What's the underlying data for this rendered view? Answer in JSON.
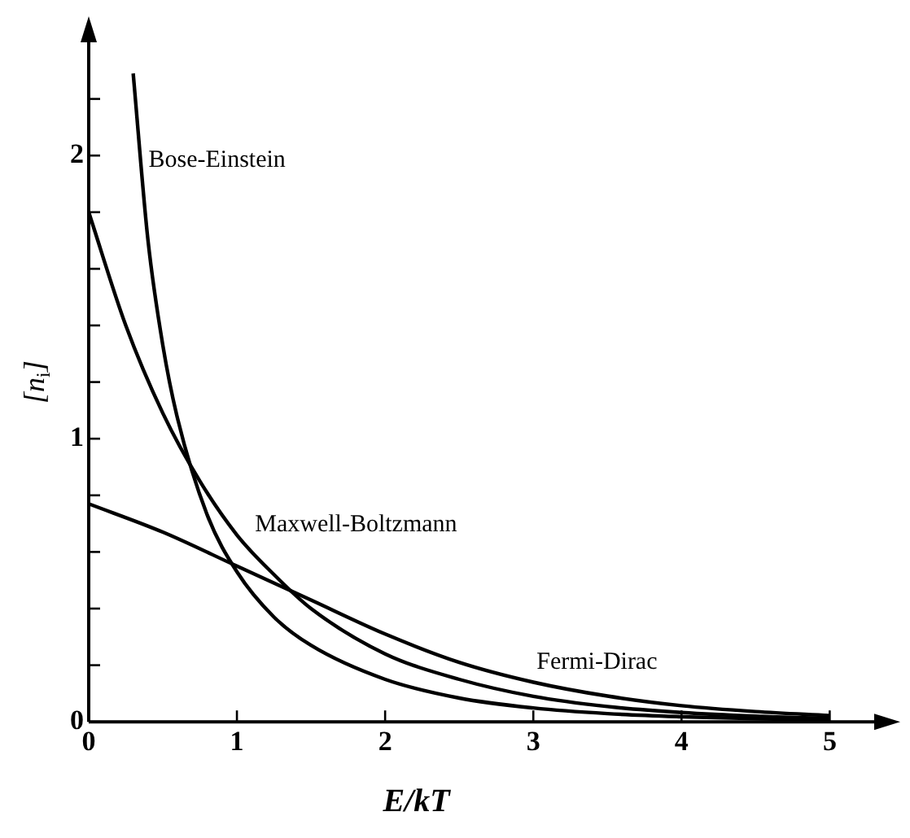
{
  "chart_data": {
    "type": "line",
    "xlabel": "E/kT",
    "ylabel": "[n$_{i}$]",
    "xlim": [
      0,
      5.3
    ],
    "ylim": [
      0,
      2.4
    ],
    "xticks": [
      0,
      1,
      2,
      3,
      4,
      5
    ],
    "yticks": [
      0,
      {
        "value": 0.2,
        "label": null
      },
      {
        "value": 0.4,
        "label": null
      },
      {
        "value": 0.6,
        "label": null
      },
      {
        "value": 0.8,
        "label": null
      },
      1,
      {
        "value": 1.2,
        "label": null
      },
      {
        "value": 1.4,
        "label": null
      },
      {
        "value": 1.6,
        "label": null
      },
      {
        "value": 1.8,
        "label": null
      },
      2,
      {
        "value": 2.2,
        "label": null
      }
    ],
    "grid": false,
    "legend": false,
    "marker": "none",
    "line_style": "solid",
    "series": [
      {
        "name": "Bose-Einstein",
        "color": "#000000",
        "x": [
          0.3,
          0.4,
          0.5,
          0.6,
          0.8,
          1,
          1.25,
          1.5,
          2,
          2.5,
          3,
          3.5,
          4,
          4.5,
          5
        ],
        "values": [
          2.29,
          1.7,
          1.33,
          1.07,
          0.73,
          0.53,
          0.37,
          0.27,
          0.15,
          0.084,
          0.049,
          0.029,
          0.018,
          0.011,
          0.006
        ]
      },
      {
        "name": "Maxwell-Boltzmann",
        "color": "#000000",
        "x": [
          0,
          0.25,
          0.5,
          0.75,
          1,
          1.25,
          1.5,
          2,
          2.5,
          3,
          3.5,
          4,
          4.5,
          5
        ],
        "values": [
          1.8,
          1.4,
          1.09,
          0.85,
          0.66,
          0.52,
          0.4,
          0.24,
          0.15,
          0.09,
          0.054,
          0.033,
          0.02,
          0.012
        ]
      },
      {
        "name": "Fermi-Dirac",
        "color": "#000000",
        "x": [
          0,
          0.5,
          1,
          1.5,
          2,
          2.5,
          3,
          3.5,
          4,
          4.5,
          5
        ],
        "values": [
          0.77,
          0.67,
          0.55,
          0.43,
          0.31,
          0.21,
          0.14,
          0.091,
          0.057,
          0.036,
          0.022
        ]
      }
    ]
  }
}
